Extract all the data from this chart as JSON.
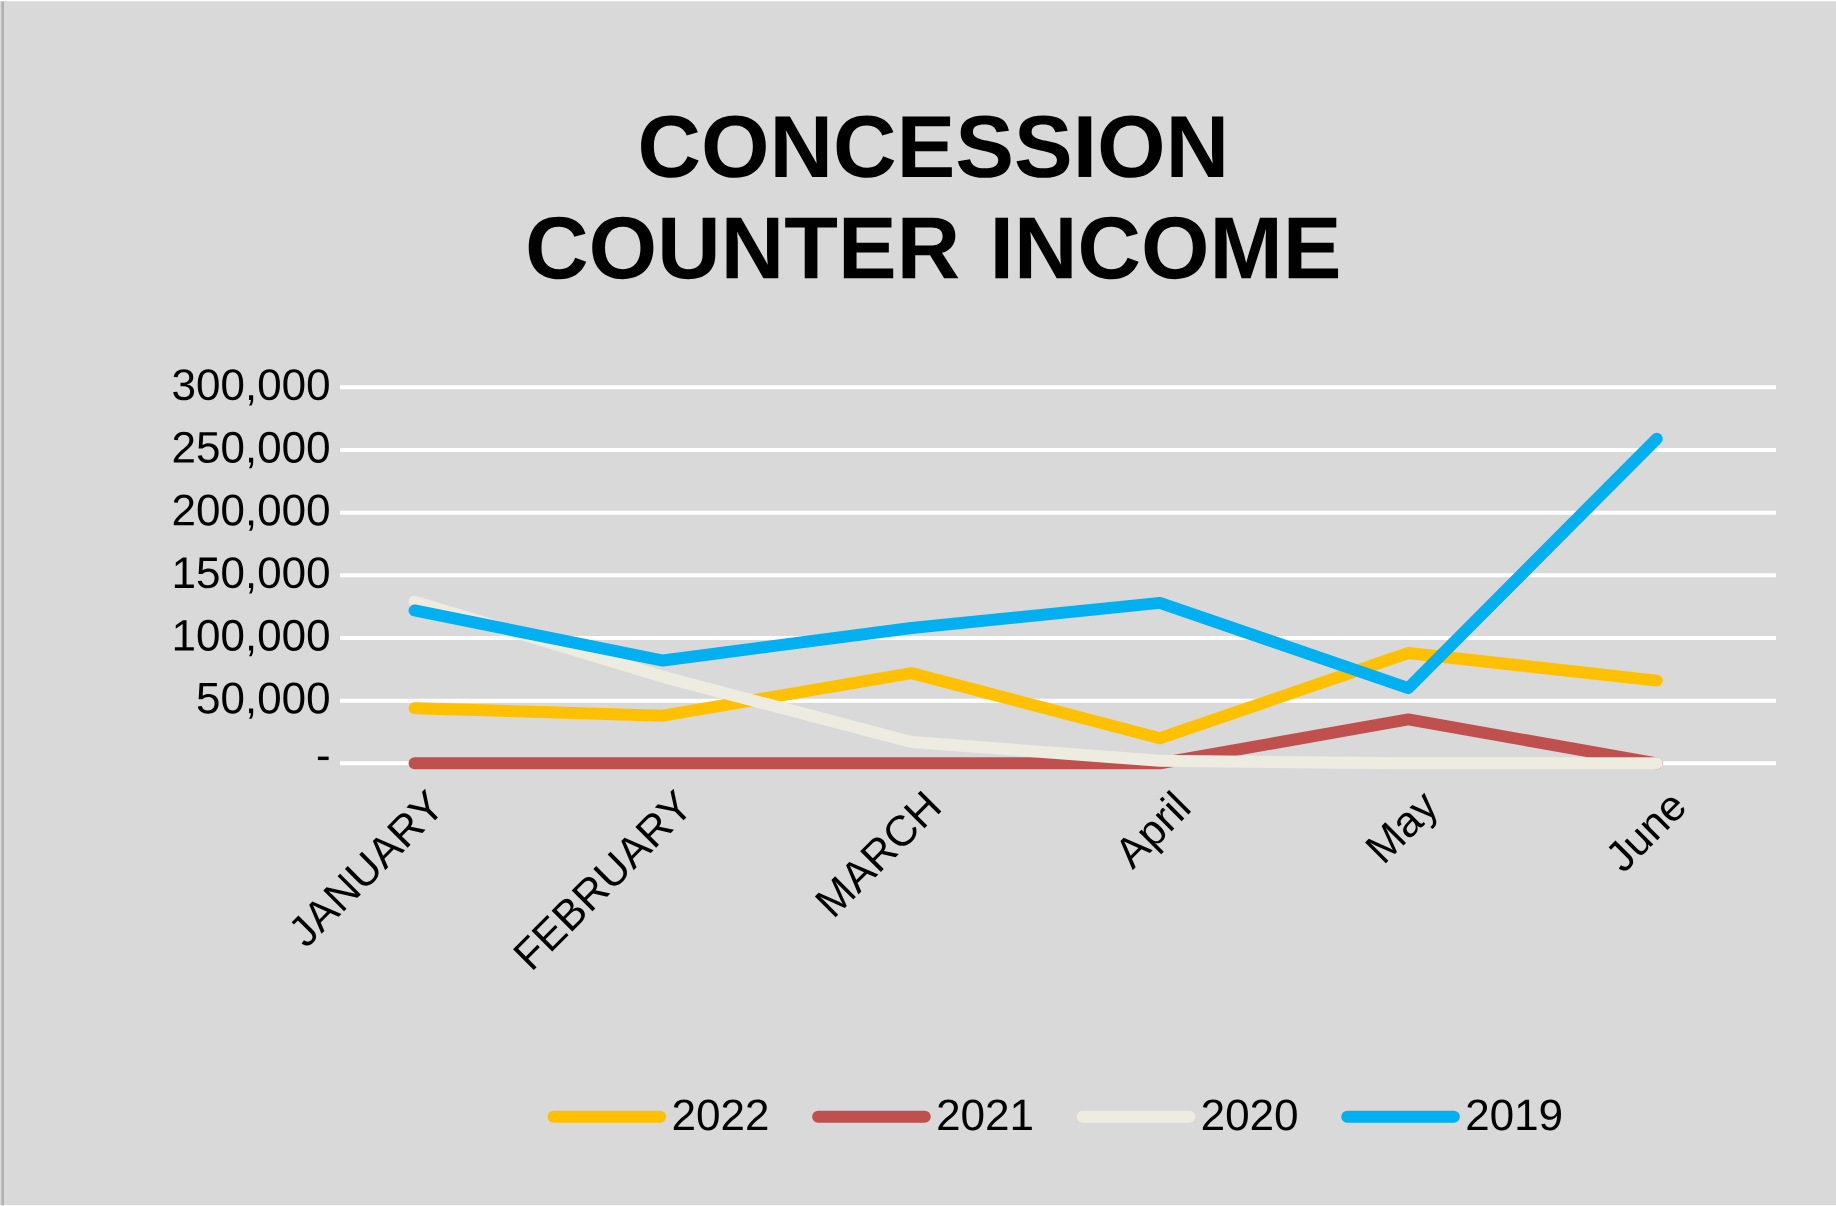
{
  "chart_data": {
    "type": "line",
    "title": "CONCESSION COUNTER INCOME",
    "categories": [
      "JANUARY",
      "FEBRUARY",
      "MARCH",
      "April",
      "May",
      "June"
    ],
    "series": [
      {
        "name": "2022",
        "color": "#ffc000",
        "values": [
          44000,
          38000,
          72000,
          20000,
          88000,
          66000
        ]
      },
      {
        "name": "2021",
        "color": "#c0504d",
        "values": [
          0,
          0,
          0,
          0,
          35000,
          0
        ]
      },
      {
        "name": "2020",
        "color": "#eeece1",
        "values": [
          129000,
          69000,
          17000,
          2000,
          0,
          0
        ]
      },
      {
        "name": "2019",
        "color": "#00b0f0",
        "values": [
          122000,
          82000,
          108000,
          128000,
          60000,
          259000
        ]
      }
    ],
    "ylim": [
      0,
      300000
    ],
    "yticks": [
      {
        "value": 0,
        "label": "-"
      },
      {
        "value": 50000,
        "label": "50,000"
      },
      {
        "value": 100000,
        "label": "100,000"
      },
      {
        "value": 150000,
        "label": "150,000"
      },
      {
        "value": 200000,
        "label": "200,000"
      },
      {
        "value": 250000,
        "label": "250,000"
      },
      {
        "value": 300000,
        "label": "300,000"
      }
    ],
    "grid": "y",
    "legend": "bottom",
    "marker": "none",
    "line_style": "solid"
  }
}
